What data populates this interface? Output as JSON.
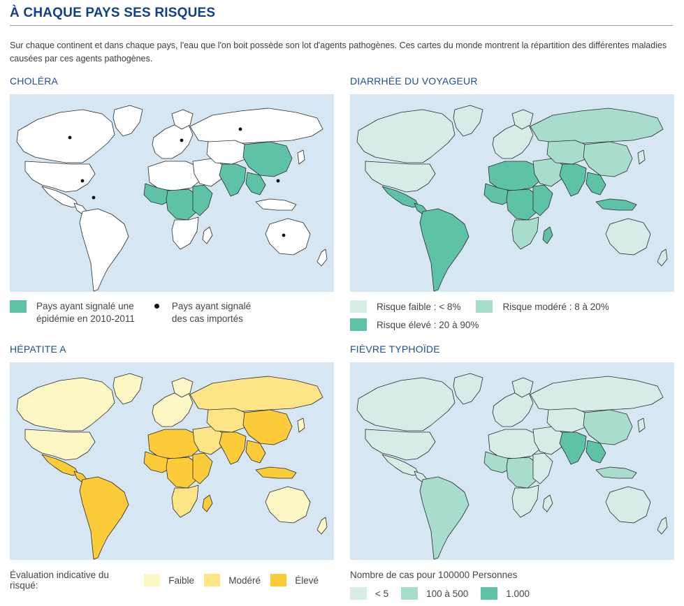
{
  "page": {
    "title": "À CHAQUE PAYS SES RISQUES",
    "intro": "Sur chaque continent et dans chaque pays, l'eau que l'on boit possède son lot d'agents pathogènes. Ces cartes du monde montrent la répartition des différentes maladies causées par ces agents pathogènes."
  },
  "colors": {
    "ocean": "#d6e6f3",
    "land_white": "#ffffff",
    "teal_light": "#d5ede6",
    "teal_mid": "#a8dccd",
    "teal_dark": "#5ec3a6",
    "yellow_light": "#fdf7c6",
    "yellow_mid": "#fce487",
    "yellow_dark": "#fbcb3a",
    "border": "#2a2a2a"
  },
  "maps": {
    "cholera": {
      "title": "CHOLÉRA",
      "legend": {
        "epidemic_label_1": "Pays ayant signalé une",
        "epidemic_label_2": "épidémie en 2010-2011",
        "imported_label_1": "Pays ayant signalé",
        "imported_label_2": "des cas importés"
      }
    },
    "diarrhee": {
      "title": "DIARRHÉE DU VOYAGEUR",
      "legend": {
        "low": "Risque faible : < 8%",
        "moderate": "Risque modéré : 8 à 20%",
        "high": "Risque élevé : 20 à 90%"
      }
    },
    "hepatite": {
      "title": "HÉPATITE A",
      "legend": {
        "prefix": "Évaluation indicative du risqué:",
        "low": "Faible",
        "moderate": "Modéré",
        "high": "Élevé"
      }
    },
    "typhoide": {
      "title": "FIÈVRE TYPHOÏDE",
      "legend": {
        "caption": "Nombre de cas pour 100000 Personnes",
        "low": "< 5",
        "moderate": "100 à 500",
        "high": "1.000"
      }
    }
  }
}
